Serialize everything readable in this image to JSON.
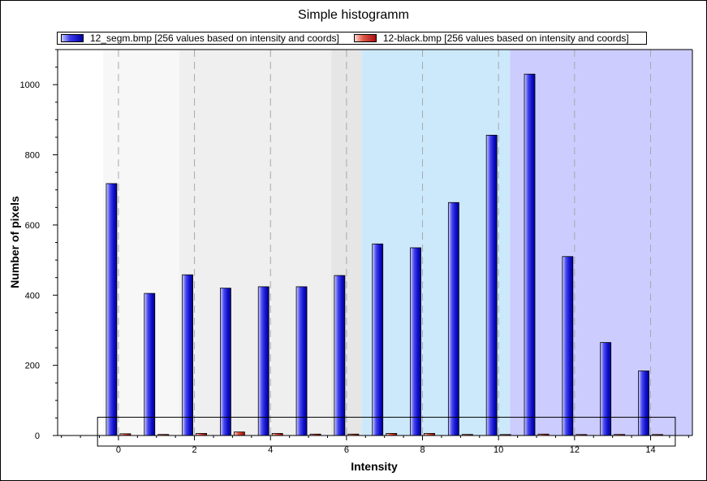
{
  "chart_data": {
    "type": "bar",
    "title": "Simple histogramm",
    "xlabel": "Intensity",
    "ylabel": "Number of pixels",
    "x": [
      0,
      1,
      2,
      3,
      4,
      5,
      6,
      7,
      8,
      9,
      10,
      11,
      12,
      13,
      14
    ],
    "xticks": [
      "0",
      "2",
      "4",
      "6",
      "8",
      "10",
      "12",
      "14"
    ],
    "yticks": [
      "0",
      "200",
      "400",
      "600",
      "800",
      "1000"
    ],
    "xlim": [
      -1.6,
      15.1
    ],
    "ylim": [
      0,
      1100
    ],
    "grid": "vertical dashed",
    "legend_position": "top",
    "series": [
      {
        "name": "12_segm.bmp [256 values based on intensity and coords]",
        "color": "#2a2ae0",
        "values": [
          718,
          405,
          458,
          420,
          424,
          424,
          456,
          546,
          535,
          664,
          856,
          1030,
          510,
          265,
          184
        ]
      },
      {
        "name": "12-black.bmp [256 values based on intensity and coords]",
        "color": "#d04030",
        "values": [
          5,
          3,
          6,
          10,
          6,
          4,
          4,
          6,
          6,
          3,
          1,
          4,
          2,
          3,
          1
        ]
      }
    ],
    "background_bands": [
      {
        "from": -0.4,
        "to": 1.6,
        "color": "#f7f7f7"
      },
      {
        "from": 1.6,
        "to": 5.6,
        "color": "#efefef"
      },
      {
        "from": 5.6,
        "to": 6.4,
        "color": "#e6e6e6"
      },
      {
        "from": 6.4,
        "to": 10.3,
        "color": "#cce9fb"
      },
      {
        "from": 10.3,
        "to": 15.1,
        "color": "#ccccff"
      }
    ]
  }
}
